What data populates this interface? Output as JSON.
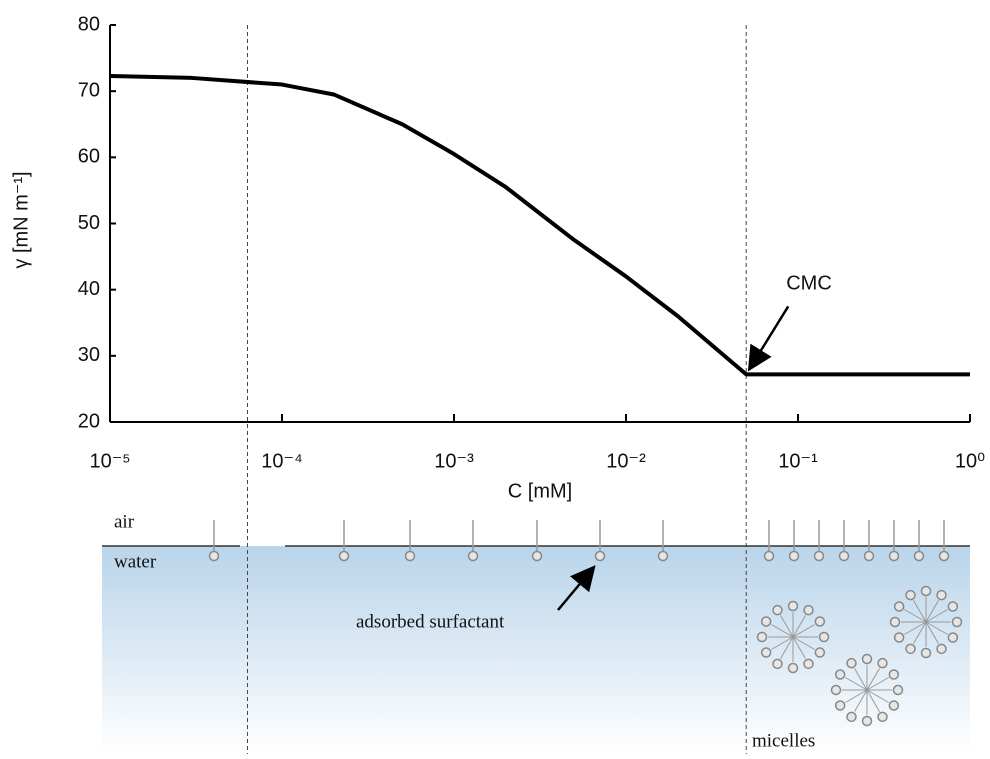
{
  "chart_data": {
    "type": "line",
    "log_x": true,
    "x_label": "C [mM]",
    "y_label": "γ [mN m⁻¹]",
    "x": [
      1e-05,
      3e-05,
      0.0001,
      0.0002,
      0.0005,
      0.001,
      0.002,
      0.005,
      0.01,
      0.02,
      0.05,
      0.1,
      1
    ],
    "series": [
      {
        "color": "#000000",
        "values": [
          72.3,
          72.0,
          71.0,
          69.5,
          65.0,
          60.5,
          55.5,
          47.5,
          42.0,
          36.0,
          27.2,
          27.2,
          27.2
        ]
      }
    ],
    "xlim": [
      1e-05,
      1
    ],
    "ylim": [
      20,
      80
    ],
    "xticks": [
      {
        "value": 1e-05,
        "label": "10⁻⁵"
      },
      {
        "value": 0.0001,
        "label": "10⁻⁴"
      },
      {
        "value": 0.001,
        "label": "10⁻³"
      },
      {
        "value": 0.01,
        "label": "10⁻²"
      },
      {
        "value": 0.1,
        "label": "10⁻¹"
      },
      {
        "value": 1,
        "label": "10⁰"
      }
    ],
    "yticks": [
      20,
      30,
      40,
      50,
      60,
      70,
      80
    ],
    "vlines": [
      6.3e-05,
      0.05
    ],
    "annotations": [
      {
        "text": "CMC",
        "x": 0.05,
        "y": 27.2
      }
    ]
  },
  "diagram": {
    "air": "air",
    "water": "water",
    "adsorbed": "adsorbed surfactant",
    "micelles": "micelles"
  }
}
